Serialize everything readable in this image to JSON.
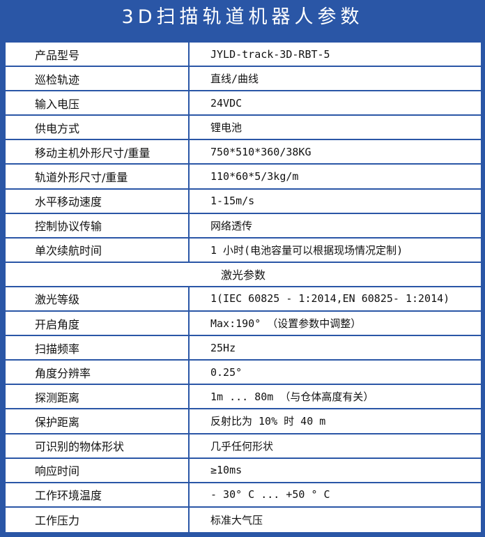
{
  "title": "3D扫描轨道机器人参数",
  "rows": [
    [
      "产品型号",
      "JYLD-track-3D-RBT-5"
    ],
    [
      "巡检轨迹",
      "直线/曲线"
    ],
    [
      "输入电压",
      "24VDC"
    ],
    [
      "供电方式",
      "锂电池"
    ],
    [
      "移动主机外形尺寸/重量",
      "750*510*360/38KG"
    ],
    [
      "轨道外形尺寸/重量",
      "110*60*5/3kg/m"
    ],
    [
      "水平移动速度",
      "1-15m/s"
    ],
    [
      "控制协议传输",
      "网络透传"
    ],
    [
      "单次续航时间",
      "1 小时(电池容量可以根据现场情况定制)"
    ]
  ],
  "section": "激光参数",
  "laser_rows": [
    [
      "激光等级",
      "1(IEC 60825 - 1:2014,EN 60825- 1:2014)"
    ],
    [
      "开启角度",
      "Max:190° （设置参数中调整）"
    ],
    [
      "扫描频率",
      "25Hz"
    ],
    [
      "角度分辨率",
      "0.25°"
    ],
    [
      "探测距离",
      "1m ... 80m （与仓体高度有关）"
    ],
    [
      "保护距离",
      "反射比为 10% 时 40 m"
    ],
    [
      "可识别的物体形状",
      "几乎任何形状"
    ],
    [
      "响应时间",
      "≥10ms"
    ],
    [
      "工作环境温度",
      "- 30° C ... +50 ° C"
    ],
    [
      "工作压力",
      "标准大气压"
    ]
  ]
}
